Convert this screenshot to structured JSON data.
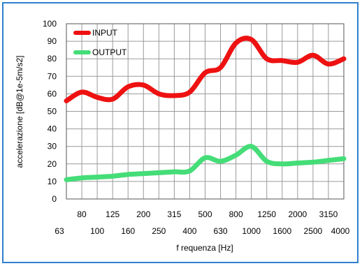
{
  "chart_data": {
    "type": "line",
    "xlabel": "f requenza [Hz]",
    "ylabel": "accelerazione [dB@1e-5m/s2]",
    "categories": [
      "63",
      "80",
      "100",
      "125",
      "160",
      "200",
      "250",
      "315",
      "400",
      "500",
      "630",
      "800",
      "1000",
      "1250",
      "1600",
      "2000",
      "2500",
      "3150",
      "4000"
    ],
    "x_tick_labels_upper": [
      "80",
      "125",
      "200",
      "315",
      "500",
      "800",
      "1250",
      "2000",
      "3150"
    ],
    "x_tick_labels_lower": [
      "63",
      "100",
      "160",
      "250",
      "400",
      "630",
      "1000",
      "1600",
      "2500",
      "4000"
    ],
    "yticks": [
      0,
      10,
      20,
      30,
      40,
      50,
      60,
      70,
      80,
      90,
      100
    ],
    "ylim": [
      0,
      100
    ],
    "grid": true,
    "legend_position": "top-left",
    "series": [
      {
        "name": "INPUT",
        "color": "#ee1111",
        "values": [
          56,
          61,
          58,
          57,
          64,
          65,
          60,
          59,
          61,
          72,
          75,
          89,
          91,
          80,
          79,
          78,
          82,
          77,
          80
        ]
      },
      {
        "name": "OUTPUT",
        "color": "#44dd77",
        "values": [
          11,
          12,
          12.5,
          13,
          14,
          14.5,
          15,
          15.5,
          16,
          23.5,
          21.5,
          25,
          30,
          21.5,
          20,
          20.5,
          21,
          22,
          23
        ]
      }
    ]
  }
}
